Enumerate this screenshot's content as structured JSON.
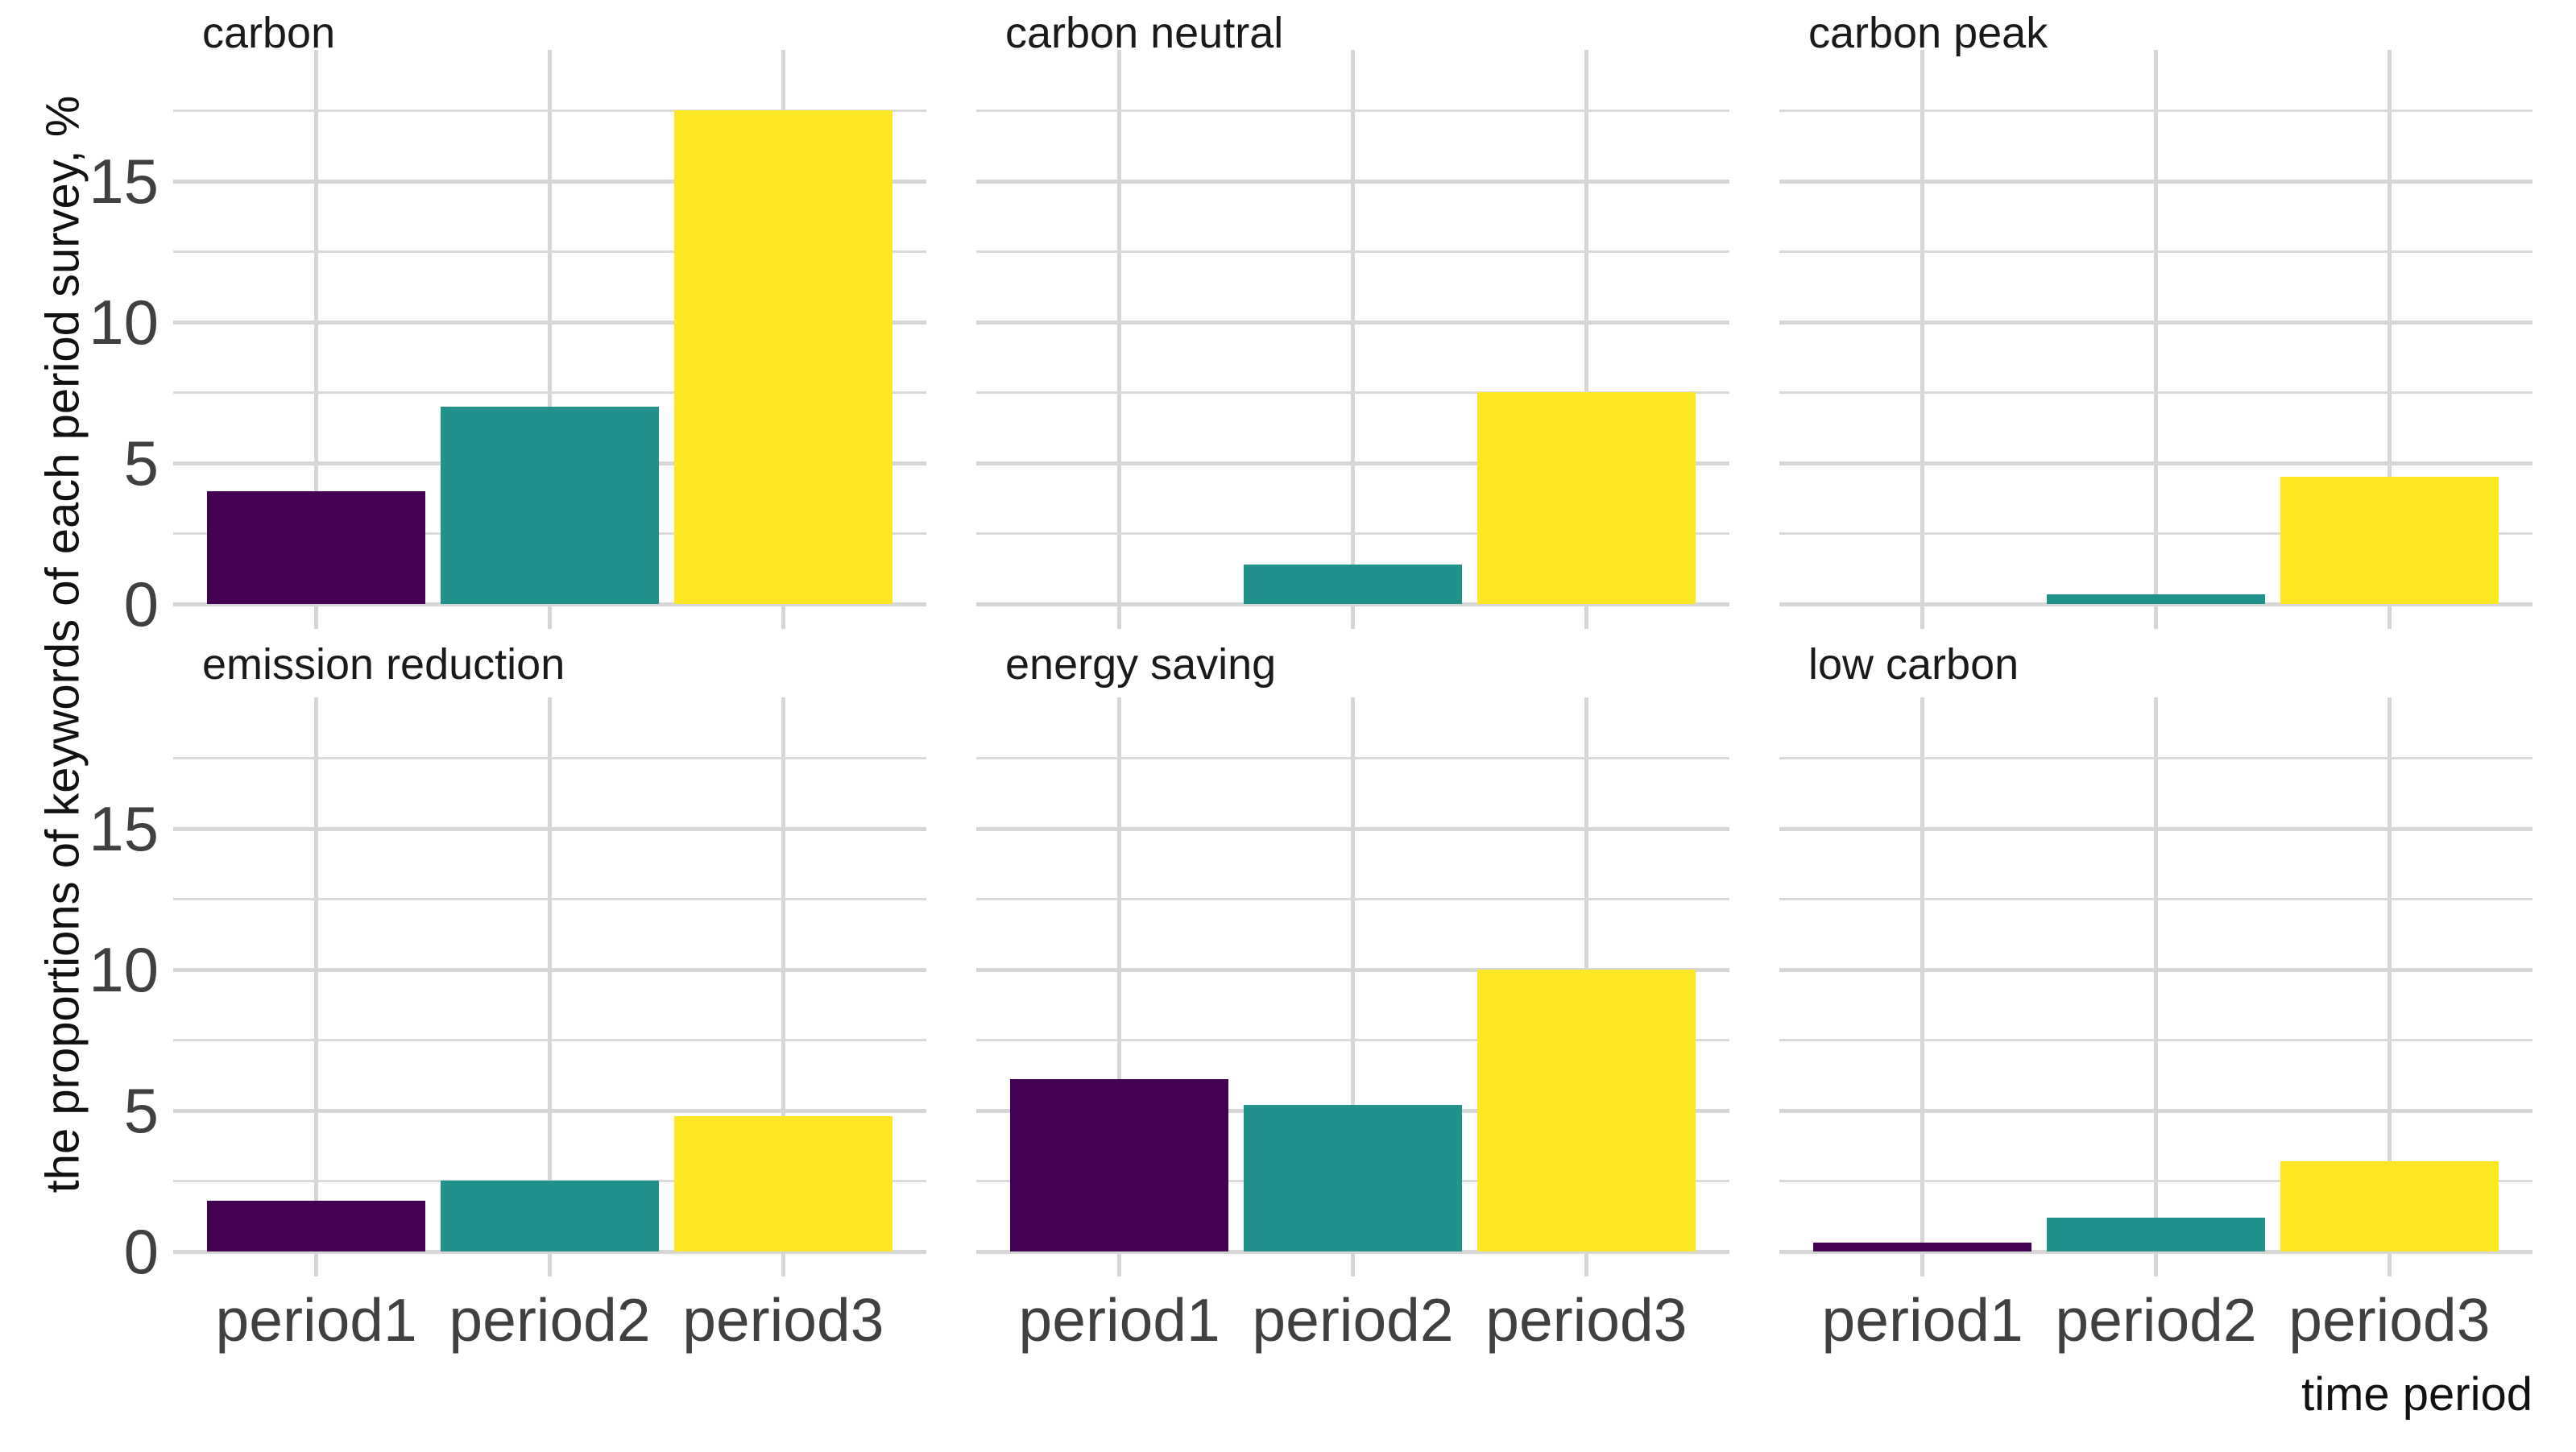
{
  "chart_data": {
    "type": "bar",
    "faceted": true,
    "categories": [
      "period1",
      "period2",
      "period3"
    ],
    "facets": [
      {
        "title": "carbon",
        "values": [
          4.0,
          7.0,
          17.5
        ]
      },
      {
        "title": "carbon neutral",
        "values": [
          0,
          1.4,
          7.5
        ]
      },
      {
        "title": "carbon peak",
        "values": [
          0,
          0.35,
          4.5
        ]
      },
      {
        "title": "emission reduction",
        "values": [
          1.8,
          2.5,
          4.8
        ]
      },
      {
        "title": "energy saving",
        "values": [
          6.1,
          5.2,
          10.0
        ]
      },
      {
        "title": "low carbon",
        "values": [
          0.3,
          1.2,
          3.2
        ]
      }
    ],
    "title": "",
    "xlabel": "time period",
    "ylabel": "the proportions of keywords of each period survey, %",
    "ylim": [
      0,
      18.6
    ],
    "y_major_ticks": [
      0,
      5,
      10,
      15
    ],
    "y_minor_gridlines": [
      2.5,
      7.5,
      12.5,
      17.5
    ],
    "grid": true,
    "legend": "none",
    "bar_colors": [
      "#440154",
      "#21918c",
      "#fde725"
    ],
    "colors": {
      "grid_major": "#d6d6d6",
      "grid_minor": "#dadada",
      "tick_label": "#404040",
      "strip_text": "#1a1a1a",
      "axis_title": "#111111",
      "background": "#ffffff"
    }
  }
}
